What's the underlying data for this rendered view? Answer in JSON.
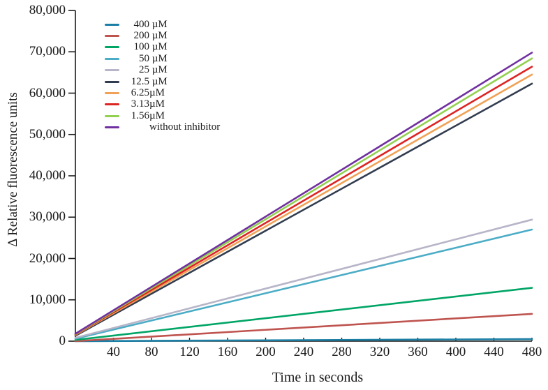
{
  "figure": {
    "ylabel": "Δ Relative fluorescence units",
    "xlabel": "Time in seconds"
  },
  "chart_data": {
    "type": "line",
    "title": "",
    "xlabel": "Time in seconds",
    "ylabel": "Δ Relative fluorescence units",
    "xlim": [
      0,
      480
    ],
    "ylim": [
      0,
      80000
    ],
    "grid": false,
    "legend_position": "top-left-inside",
    "x": [
      0,
      480
    ],
    "x_ticks": [
      40,
      80,
      120,
      160,
      200,
      240,
      280,
      320,
      360,
      400,
      440,
      480
    ],
    "x_tick_labels": [
      "40",
      "80",
      "120",
      "160",
      "200",
      "240",
      "280",
      "320",
      "360",
      "400",
      "440",
      "480"
    ],
    "y_ticks": [
      0,
      10000,
      20000,
      30000,
      40000,
      50000,
      60000,
      70000,
      80000
    ],
    "y_tick_labels": [
      "0",
      "10,000",
      "20,000",
      "30,000",
      "40,000",
      "50,000",
      "60,000",
      "70,000",
      "80,000"
    ],
    "axis_color": "#1a1a1a",
    "series": [
      {
        "name": "400 µM",
        "legend_num": "400",
        "legend_suffix": " µM",
        "color": "#1b7fa5",
        "values": [
          0,
          500
        ]
      },
      {
        "name": "200 µM",
        "legend_num": "200",
        "legend_suffix": " µM",
        "color": "#bf544f",
        "values": [
          0,
          6600
        ]
      },
      {
        "name": "100 µM",
        "legend_num": "100",
        "legend_suffix": " µM",
        "color": "#00a566",
        "values": [
          300,
          12900
        ]
      },
      {
        "name": "50 µM",
        "legend_num": "50",
        "legend_suffix": " µM",
        "color": "#4bacc6",
        "values": [
          600,
          27000
        ]
      },
      {
        "name": "25 µM",
        "legend_num": "25",
        "legend_suffix": " µM",
        "color": "#b7b5c8",
        "values": [
          800,
          29400
        ]
      },
      {
        "name": "12.5 µM",
        "legend_num": "12.5",
        "legend_suffix": " µM",
        "color": "#323c4f",
        "values": [
          1300,
          62300
        ]
      },
      {
        "name": "6.25µM",
        "legend_num": "6.25",
        "legend_suffix": "µM",
        "color": "#f0a155",
        "values": [
          1500,
          64500
        ]
      },
      {
        "name": "3.13µM",
        "legend_num": "3.13",
        "legend_suffix": "µM",
        "color": "#dc2423",
        "values": [
          1600,
          66400
        ]
      },
      {
        "name": "1.56µM",
        "legend_num": "1.56",
        "legend_suffix": "µM",
        "color": "#92d050",
        "values": [
          1700,
          68400
        ]
      },
      {
        "name": "without inhibitor",
        "legend_num": "",
        "legend_suffix": "without inhibitor",
        "color": "#7030a0",
        "values": [
          1800,
          69800
        ]
      }
    ]
  }
}
